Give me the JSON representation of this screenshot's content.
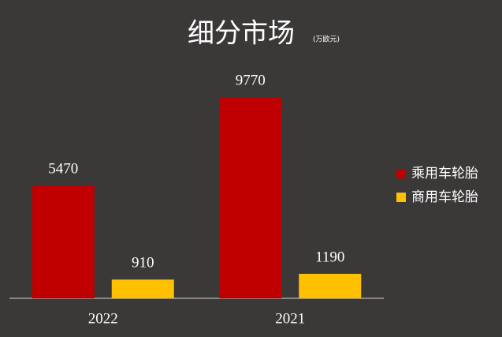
{
  "chart_data": {
    "type": "bar",
    "title": "细分市场",
    "subtitle": "(万欧元)",
    "categories": [
      "2022",
      "2021"
    ],
    "series": [
      {
        "name": "乘用车轮胎",
        "color": "#c00000",
        "values": [
          5470,
          9770
        ]
      },
      {
        "name": "商用车轮胎",
        "color": "#ffc000",
        "values": [
          910,
          1190
        ]
      }
    ],
    "legend": "right"
  }
}
